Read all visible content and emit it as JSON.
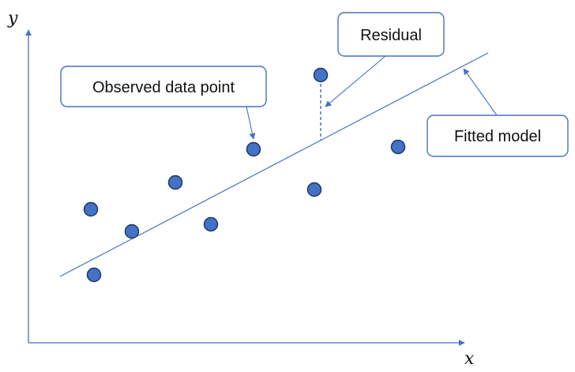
{
  "axes": {
    "x_label": "x",
    "y_label": "y"
  },
  "callouts": {
    "observed": "Observed data point",
    "residual": "Residual",
    "fitted": "Fitted model"
  },
  "colors": {
    "accent": "#4472c4",
    "point_fill": "#4472c4",
    "point_outline": "#1f3864",
    "text": "#111111"
  }
}
